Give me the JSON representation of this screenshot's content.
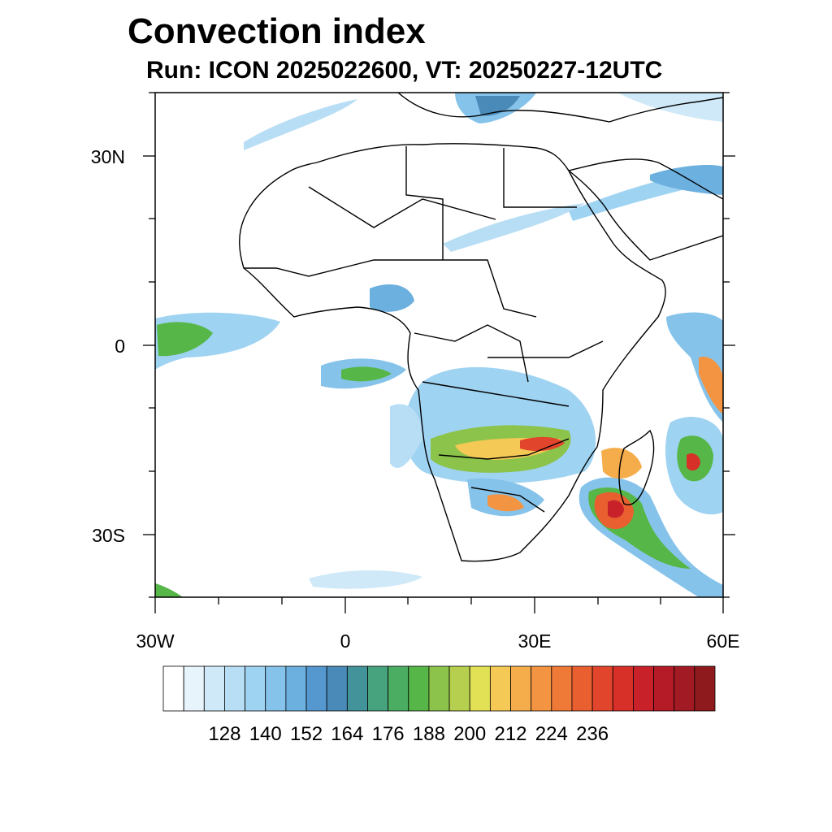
{
  "title": "Convection index",
  "subtitle": "Run: ICON 2025022600,  VT: 20250227-12UTC",
  "lat_labels": [
    "30N",
    "0",
    "30S"
  ],
  "lon_labels": [
    "30W",
    "0",
    "30E",
    "60E"
  ],
  "colorbar": {
    "labels": [
      "128",
      "140",
      "152",
      "164",
      "176",
      "188",
      "200",
      "212",
      "224",
      "236"
    ],
    "colors": [
      "#ffffff",
      "#e8f4fc",
      "#cfe9f8",
      "#b8def5",
      "#9fd3f2",
      "#86c3ea",
      "#6cb0e0",
      "#5598cf",
      "#4a8ab8",
      "#43939a",
      "#47a27e",
      "#4aad62",
      "#56b748",
      "#8cc34a",
      "#b6cf4e",
      "#e2e055",
      "#f4c955",
      "#f5ad4c",
      "#f39442",
      "#ef7a38",
      "#e95f30",
      "#e1452b",
      "#d73029",
      "#c8212a",
      "#b51b27",
      "#a21a23",
      "#8e1a1e"
    ]
  },
  "map": {
    "frame_color": "#000000",
    "coast_color": "#000000"
  }
}
